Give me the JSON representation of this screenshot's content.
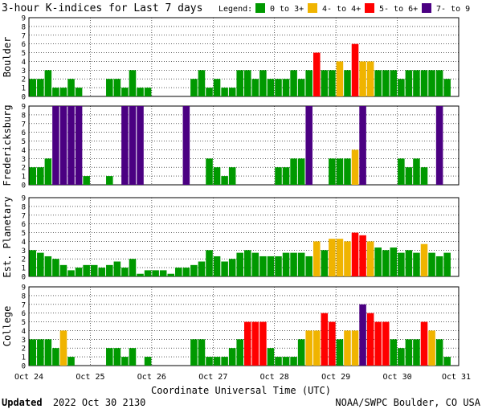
{
  "title": "3-hour K-indices for Last 7 days",
  "legend": {
    "label": "Legend:",
    "items": [
      {
        "text": "0 to 3+",
        "color": "#009900"
      },
      {
        "text": "4- to 4+",
        "color": "#f0b400"
      },
      {
        "text": "5- to 6+",
        "color": "#ff0000"
      },
      {
        "text": "7- to 9",
        "color": "#4b0082"
      }
    ]
  },
  "xlabel": "Coordinate Universal Time (UTC)",
  "footer": {
    "updated_label": "Updated",
    "updated_value": "2022 Oct 30 2130",
    "credit": "NOAA/SWPC Boulder, CO USA"
  },
  "colors": {
    "quiet": "#009900",
    "active": "#f0b400",
    "storm": "#ff0000",
    "severe": "#4b0082",
    "grid": "#000000"
  },
  "chart_data": [
    {
      "type": "bar",
      "name": "Boulder",
      "ylim": [
        0,
        9
      ],
      "yticks": [
        "0",
        "1",
        "2",
        "3",
        "4",
        "5",
        "6",
        "7",
        "8",
        "9"
      ],
      "xticks": [
        "Oct 24",
        "Oct 25",
        "Oct 26",
        "Oct 27",
        "Oct 28",
        "Oct 29",
        "Oct 30",
        "Oct 31"
      ],
      "values": [
        2,
        2,
        3,
        1,
        1,
        2,
        1,
        0,
        0,
        0,
        2,
        2,
        1,
        3,
        1,
        1,
        0,
        0,
        0,
        0,
        0,
        2,
        3,
        1,
        2,
        1,
        1,
        3,
        3,
        2,
        3,
        2,
        2,
        2,
        3,
        2,
        3,
        5,
        3,
        3,
        4,
        3,
        6,
        4,
        4,
        3,
        3,
        3,
        2,
        3,
        3,
        3,
        3,
        3,
        2,
        0
      ]
    },
    {
      "type": "bar",
      "name": "Fredericksburg",
      "ylim": [
        0,
        9
      ],
      "yticks": [
        "0",
        "1",
        "2",
        "3",
        "4",
        "5",
        "6",
        "7",
        "8",
        "9"
      ],
      "xticks": [
        "Oct 24",
        "Oct 25",
        "Oct 26",
        "Oct 27",
        "Oct 28",
        "Oct 29",
        "Oct 30",
        "Oct 31"
      ],
      "values": [
        2,
        2,
        3,
        9,
        9,
        9,
        9,
        1,
        0,
        0,
        1,
        0,
        9,
        9,
        9,
        0,
        0,
        0,
        0,
        0,
        9,
        0,
        0,
        3,
        2,
        1,
        2,
        0,
        0,
        0,
        0,
        0,
        2,
        2,
        3,
        3,
        9,
        0,
        0,
        3,
        3,
        3,
        4,
        9,
        0,
        0,
        0,
        0,
        3,
        2,
        3,
        2,
        0,
        9,
        0,
        0
      ]
    },
    {
      "type": "bar",
      "name": "Est. Planetary",
      "ylim": [
        0,
        9
      ],
      "yticks": [
        "0",
        "1",
        "2",
        "3",
        "4",
        "5",
        "6",
        "7",
        "8",
        "9"
      ],
      "xticks": [
        "Oct 24",
        "Oct 25",
        "Oct 26",
        "Oct 27",
        "Oct 28",
        "Oct 29",
        "Oct 30",
        "Oct 31"
      ],
      "values": [
        3,
        2.7,
        2.3,
        2,
        1.3,
        0.7,
        1,
        1.3,
        1.3,
        1,
        1.3,
        1.7,
        1,
        2,
        0.3,
        0.7,
        0.7,
        0.7,
        0.3,
        1,
        1,
        1.3,
        1.7,
        3,
        2.3,
        1.7,
        2,
        2.7,
        3,
        2.7,
        2.3,
        2.3,
        2.3,
        2.7,
        2.7,
        2.7,
        2.3,
        4,
        3,
        4.3,
        4.3,
        4,
        5,
        4.7,
        4,
        3.3,
        3,
        3.3,
        2.7,
        3,
        2.7,
        3.7,
        2.7,
        2.3,
        2.7,
        0
      ]
    },
    {
      "type": "bar",
      "name": "College",
      "ylim": [
        0,
        9
      ],
      "yticks": [
        "0",
        "1",
        "2",
        "3",
        "4",
        "5",
        "6",
        "7",
        "8",
        "9"
      ],
      "xticks": [
        "Oct 24",
        "Oct 25",
        "Oct 26",
        "Oct 27",
        "Oct 28",
        "Oct 29",
        "Oct 30",
        "Oct 31"
      ],
      "values": [
        3,
        3,
        3,
        2,
        4,
        1,
        0,
        0,
        0,
        0,
        2,
        2,
        1,
        2,
        0,
        1,
        0,
        0,
        0,
        0,
        0,
        3,
        3,
        1,
        1,
        1,
        2,
        3,
        5,
        5,
        5,
        2,
        1,
        1,
        1,
        3,
        4,
        4,
        6,
        5,
        3,
        4,
        4,
        7,
        6,
        5,
        5,
        3,
        2,
        3,
        3,
        5,
        4,
        3,
        1,
        0
      ]
    }
  ]
}
